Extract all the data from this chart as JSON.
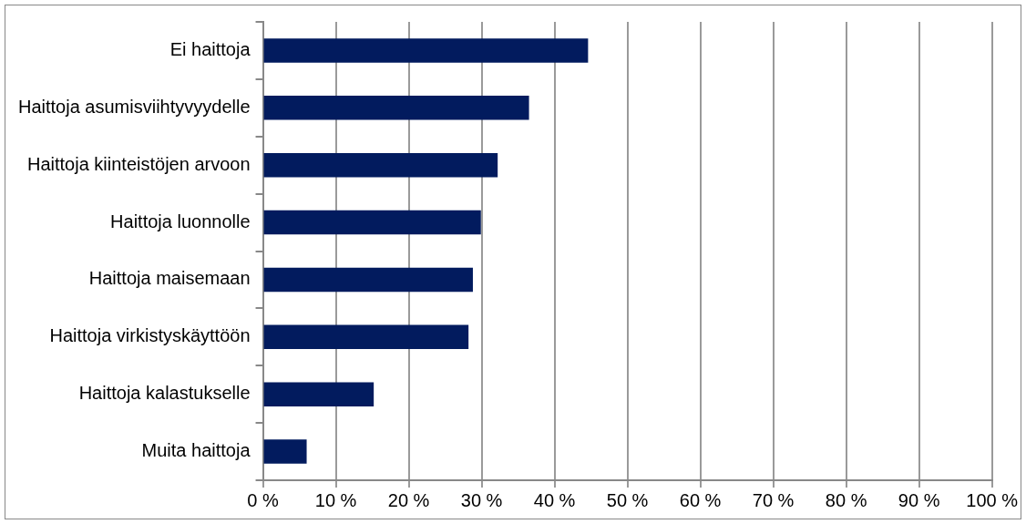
{
  "chart_data": {
    "type": "bar",
    "orientation": "horizontal",
    "categories": [
      "Ei haittoja",
      "Haittoja asumisviihtyvyydelle",
      "Haittoja kiinteistöjen arvoon",
      "Haittoja luonnolle",
      "Haittoja maisemaan",
      "Haittoja virkistyskäyttöön",
      "Haittoja kalastukselle",
      "Muita haittoja"
    ],
    "values": [
      44.6,
      36.5,
      32.2,
      29.9,
      28.8,
      28.2,
      15.2,
      6.0
    ],
    "color": "#021b5e",
    "xlim": [
      0,
      100
    ],
    "xticks": [
      {
        "value": 0,
        "label": "0 %"
      },
      {
        "value": 10,
        "label": "10 %"
      },
      {
        "value": 20,
        "label": "20 %"
      },
      {
        "value": 30,
        "label": "30 %"
      },
      {
        "value": 40,
        "label": "40 %"
      },
      {
        "value": 50,
        "label": "50 %"
      },
      {
        "value": 60,
        "label": "60 %"
      },
      {
        "value": 70,
        "label": "70 %"
      },
      {
        "value": 80,
        "label": "80 %"
      },
      {
        "value": 90,
        "label": "90 %"
      },
      {
        "value": 100,
        "label": "100 %"
      }
    ],
    "grid": "x",
    "legend": false
  }
}
